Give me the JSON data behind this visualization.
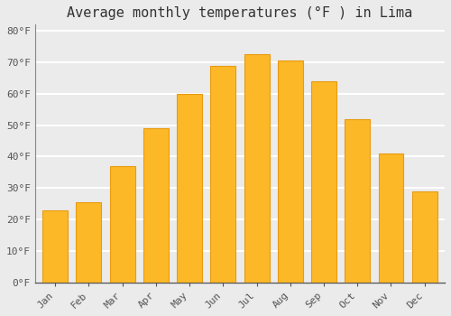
{
  "title": "Average monthly temperatures (°F ) in Lima",
  "months": [
    "Jan",
    "Feb",
    "Mar",
    "Apr",
    "May",
    "Jun",
    "Jul",
    "Aug",
    "Sep",
    "Oct",
    "Nov",
    "Dec"
  ],
  "values": [
    23,
    25.5,
    37,
    49,
    60,
    69,
    72.5,
    70.5,
    64,
    52,
    41,
    29
  ],
  "bar_color": "#FDB827",
  "bar_edge_color": "#E89B10",
  "ylim": [
    0,
    82
  ],
  "yticks": [
    0,
    10,
    20,
    30,
    40,
    50,
    60,
    70,
    80
  ],
  "ytick_labels": [
    "0°F",
    "10°F",
    "20°F",
    "30°F",
    "40°F",
    "50°F",
    "60°F",
    "70°F",
    "80°F"
  ],
  "background_color": "#EBEBEB",
  "plot_bg_color": "#EBEBEB",
  "grid_color": "#FFFFFF",
  "title_fontsize": 11,
  "tick_fontsize": 8,
  "font_family": "monospace",
  "bar_width": 0.75
}
